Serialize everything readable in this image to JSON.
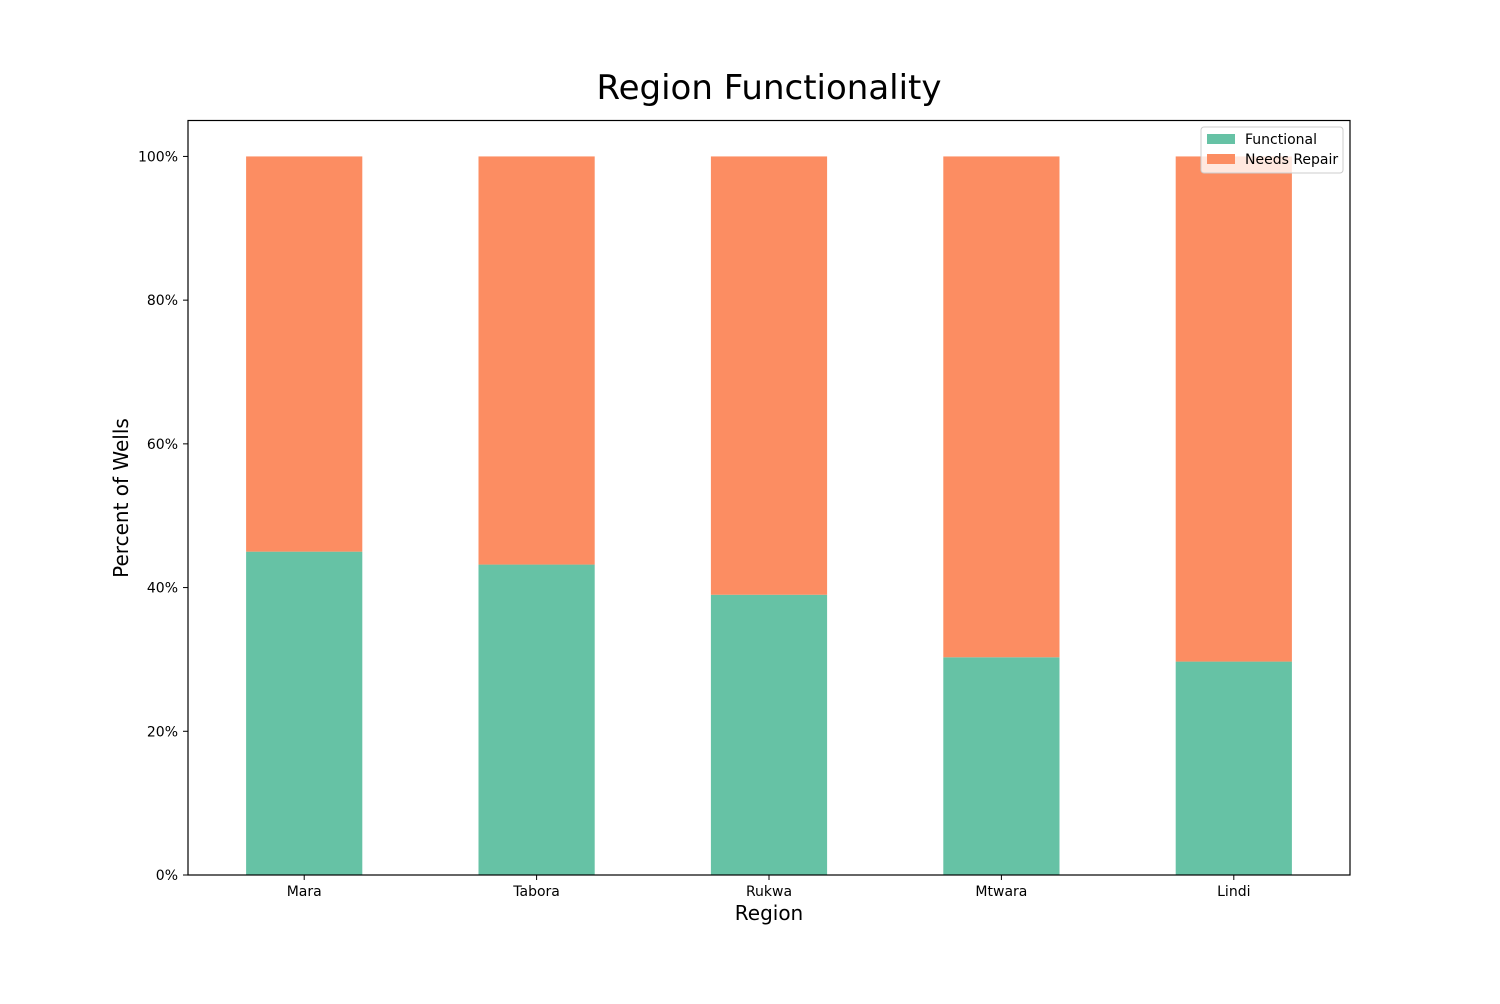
{
  "chart_data": {
    "type": "bar",
    "stacked": true,
    "title": "Region Functionality",
    "xlabel": "Region",
    "ylabel": "Percent of Wells",
    "categories": [
      "Mara",
      "Tabora",
      "Rukwa",
      "Mtwara",
      "Lindi"
    ],
    "series": [
      {
        "name": "Functional",
        "color": "#66c2a5",
        "values": [
          45.0,
          43.2,
          39.0,
          30.3,
          29.7
        ]
      },
      {
        "name": "Needs Repair",
        "color": "#fc8d62",
        "values": [
          55.0,
          56.8,
          61.0,
          69.7,
          70.3
        ]
      }
    ],
    "ylim": [
      0,
      105
    ],
    "yticks": [
      0,
      20,
      40,
      60,
      80,
      100
    ],
    "ytick_labels": [
      "0%",
      "20%",
      "40%",
      "60%",
      "80%",
      "100%"
    ],
    "grid": false,
    "legend_position": "top-right"
  }
}
